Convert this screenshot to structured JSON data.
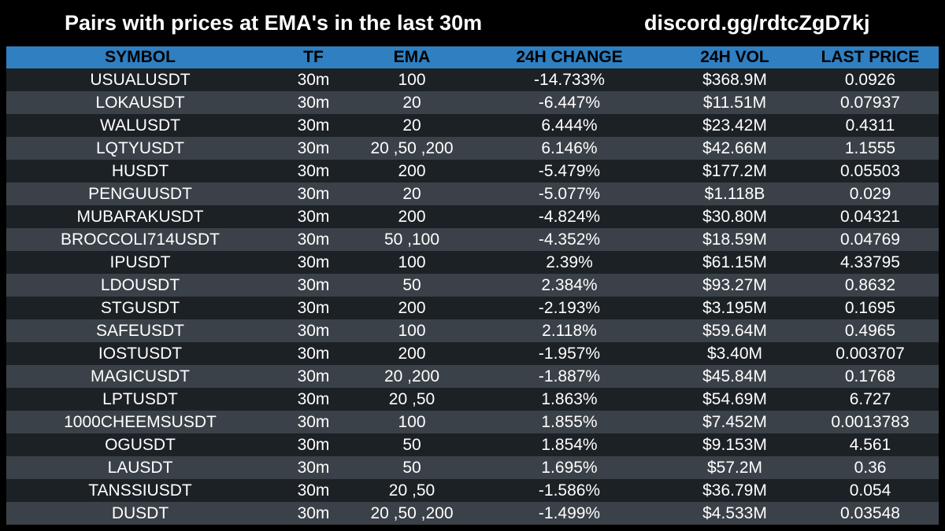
{
  "header": {
    "title": "Pairs with prices at EMA's in the last 30m",
    "discord": "discord.gg/rdtcZgD7kj"
  },
  "table": {
    "columns": [
      "SYMBOL",
      "TF",
      "EMA",
      "24H CHANGE",
      "24H VOL",
      "LAST PRICE"
    ],
    "rows": [
      [
        "USUALUSDT",
        "30m",
        "100",
        "-14.733%",
        "$368.9M",
        "0.0926"
      ],
      [
        "LOKAUSDT",
        "30m",
        "20",
        "-6.447%",
        "$11.51M",
        "0.07937"
      ],
      [
        "WALUSDT",
        "30m",
        "20",
        "6.444%",
        "$23.42M",
        "0.4311"
      ],
      [
        "LQTYUSDT",
        "30m",
        "20 ,50 ,200",
        "6.146%",
        "$42.66M",
        "1.1555"
      ],
      [
        "HUSDT",
        "30m",
        "200",
        "-5.479%",
        "$177.2M",
        "0.05503"
      ],
      [
        "PENGUUSDT",
        "30m",
        "20",
        "-5.077%",
        "$1.118B",
        "0.029"
      ],
      [
        "MUBARAKUSDT",
        "30m",
        "200",
        "-4.824%",
        "$30.80M",
        "0.04321"
      ],
      [
        "BROCCOLI714USDT",
        "30m",
        "50 ,100",
        "-4.352%",
        "$18.59M",
        "0.04769"
      ],
      [
        "IPUSDT",
        "30m",
        "100",
        "2.39%",
        "$61.15M",
        "4.33795"
      ],
      [
        "LDOUSDT",
        "30m",
        "50",
        "2.384%",
        "$93.27M",
        "0.8632"
      ],
      [
        "STGUSDT",
        "30m",
        "200",
        "-2.193%",
        "$3.195M",
        "0.1695"
      ],
      [
        "SAFEUSDT",
        "30m",
        "100",
        "2.118%",
        "$59.64M",
        "0.4965"
      ],
      [
        "IOSTUSDT",
        "30m",
        "200",
        "-1.957%",
        "$3.40M",
        "0.003707"
      ],
      [
        "MAGICUSDT",
        "30m",
        "20 ,200",
        "-1.887%",
        "$45.84M",
        "0.1768"
      ],
      [
        "LPTUSDT",
        "30m",
        "20 ,50",
        "1.863%",
        "$54.69M",
        "6.727"
      ],
      [
        "1000CHEEMSUSDT",
        "30m",
        "100",
        "1.855%",
        "$7.452M",
        "0.0013783"
      ],
      [
        "OGUSDT",
        "30m",
        "50",
        "1.854%",
        "$9.153M",
        "4.561"
      ],
      [
        "LAUSDT",
        "30m",
        "50",
        "1.695%",
        "$57.2M",
        "0.36"
      ],
      [
        "TANSSIUSDT",
        "30m",
        "20 ,50",
        "-1.586%",
        "$36.79M",
        "0.054"
      ],
      [
        "DUSDT",
        "30m",
        "20 ,50 ,200",
        "-1.499%",
        "$4.533M",
        "0.03548"
      ]
    ]
  },
  "colors": {
    "background": "#000000",
    "header_row": "#2f7fc1",
    "row_dark": "#1c2126",
    "row_light": "#3b4148",
    "text": "#ffffff"
  }
}
